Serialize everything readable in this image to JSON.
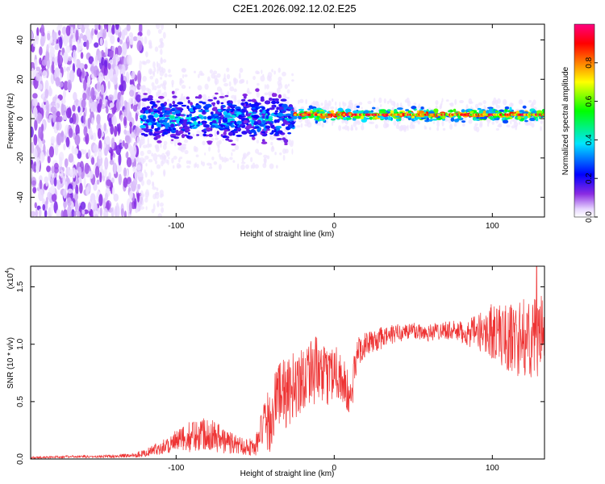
{
  "title": "C2E1.2026.092.12.02.E25",
  "chart_data": [
    {
      "type": "heatmap",
      "title": "C2E1.2026.092.12.02.E25",
      "xlabel": "Height of straight line (km)",
      "ylabel": "Frequency (Hz)",
      "xlim": [
        -192,
        133
      ],
      "ylim": [
        -50,
        48
      ],
      "xticks": [
        -100,
        0,
        100
      ],
      "yticks": [
        -40,
        -20,
        0,
        20,
        40
      ],
      "colorbar": {
        "label": "Normalized spectral amplitude",
        "range": [
          0,
          1
        ],
        "ticks": [
          "0.0",
          "0.2",
          "0.4",
          "0.6",
          "0.8"
        ],
        "colormap": [
          "#ffffff",
          "#8a2be2",
          "#0000ff",
          "#00e5ff",
          "#00ff00",
          "#ffff00",
          "#ff8000",
          "#ff0000",
          "#ff0080"
        ]
      },
      "regions": [
        {
          "from": -192,
          "to": -122,
          "description": "broadband noise",
          "freq_range": [
            -50,
            48
          ],
          "amplitude": 0.1
        },
        {
          "from": -122,
          "to": -25,
          "description": "scattered signal",
          "center_freq": 0,
          "bandwidth": 10,
          "amplitude": 0.4
        },
        {
          "from": -25,
          "to": 133,
          "description": "narrow signal",
          "center_freq": 2,
          "bandwidth": 3,
          "amplitude": 0.9
        }
      ]
    },
    {
      "type": "line",
      "xlabel": "Height of straight line (km)",
      "ylabel": "SNR (10 * v/v)",
      "y_multiplier": "(x10⁴)",
      "y_multiplier_base": "(x10",
      "y_multiplier_exp": "4",
      "y_multiplier_close": ")",
      "xlim": [
        -192,
        133
      ],
      "ylim": [
        0,
        1.68
      ],
      "xticks": [
        -100,
        0,
        100
      ],
      "yticks": [
        "0.0",
        "0.5",
        "1.0",
        "1.5"
      ],
      "color": "#ee3333",
      "series": [
        {
          "name": "SNR",
          "x": [
            -192,
            -170,
            -150,
            -130,
            -120,
            -110,
            -100,
            -90,
            -80,
            -70,
            -60,
            -50,
            -45,
            -40,
            -35,
            -30,
            -25,
            -20,
            -15,
            -10,
            -5,
            0,
            5,
            10,
            15,
            20,
            30,
            40,
            50,
            60,
            70,
            80,
            90,
            100,
            110,
            120,
            133
          ],
          "mean": [
            0.01,
            0.02,
            0.02,
            0.03,
            0.05,
            0.1,
            0.15,
            0.2,
            0.24,
            0.16,
            0.12,
            0.1,
            0.28,
            0.35,
            0.6,
            0.55,
            0.65,
            0.7,
            0.8,
            0.75,
            0.7,
            0.8,
            0.7,
            0.5,
            0.95,
            1.0,
            1.05,
            1.1,
            1.12,
            1.1,
            1.13,
            1.1,
            1.1,
            1.12,
            1.05,
            1.05,
            1.08
          ],
          "spread": [
            0.01,
            0.01,
            0.01,
            0.02,
            0.03,
            0.06,
            0.1,
            0.14,
            0.16,
            0.12,
            0.08,
            0.08,
            0.2,
            0.3,
            0.3,
            0.3,
            0.3,
            0.3,
            0.3,
            0.3,
            0.25,
            0.25,
            0.25,
            0.2,
            0.15,
            0.1,
            0.1,
            0.08,
            0.08,
            0.08,
            0.08,
            0.1,
            0.15,
            0.25,
            0.3,
            0.35,
            0.35
          ],
          "peak": {
            "x": 128,
            "y": 1.68
          }
        }
      ]
    }
  ]
}
